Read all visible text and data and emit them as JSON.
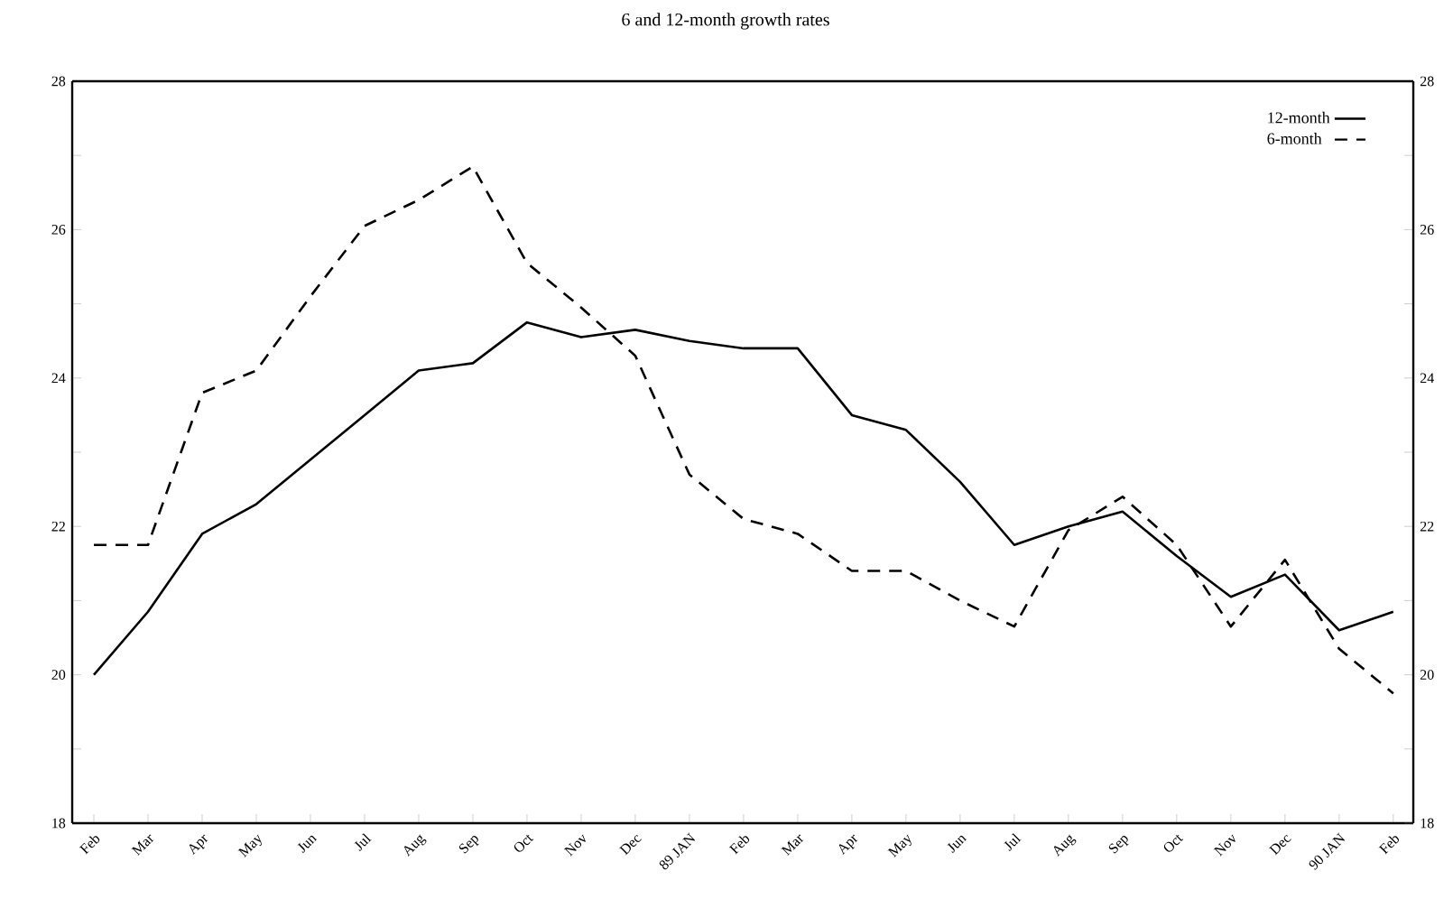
{
  "chart_data": {
    "type": "line",
    "title": "6 and 12-month growth rates",
    "categories": [
      "Feb",
      "Mar",
      "Apr",
      "May",
      "Jun",
      "Jul",
      "Aug",
      "Sep",
      "Oct",
      "Nov",
      "Dec",
      "89 JAN",
      "Feb",
      "Mar",
      "Apr",
      "May",
      "Jun",
      "Jul",
      "Aug",
      "Sep",
      "Oct",
      "Nov",
      "Dec",
      "90 JAN",
      "Feb"
    ],
    "series": [
      {
        "name": "12-month",
        "color": "#000000",
        "line_style": "solid",
        "values": [
          20.0,
          20.85,
          21.9,
          22.3,
          22.9,
          23.5,
          24.1,
          24.2,
          24.75,
          24.55,
          24.65,
          24.5,
          24.4,
          24.4,
          23.5,
          23.3,
          22.6,
          21.75,
          22.0,
          22.2,
          21.6,
          21.05,
          21.35,
          20.6,
          20.85
        ]
      },
      {
        "name": "6-month",
        "color": "#000000",
        "line_style": "dashed",
        "values": [
          21.75,
          21.75,
          23.8,
          24.1,
          25.1,
          26.05,
          26.4,
          26.85,
          25.55,
          24.95,
          24.3,
          22.7,
          22.1,
          21.9,
          21.4,
          21.4,
          21.0,
          20.65,
          21.95,
          22.4,
          21.75,
          20.65,
          21.55,
          20.35,
          19.75
        ]
      }
    ],
    "ylim": [
      18,
      28
    ],
    "yticks": [
      18,
      {
        "value": 19,
        "label": null
      },
      20,
      {
        "value": 21,
        "label": null
      },
      22,
      {
        "value": 23,
        "label": null
      },
      24,
      {
        "value": 25,
        "label": null
      },
      26,
      {
        "value": 27,
        "label": null
      },
      28
    ],
    "y2lim": [
      18,
      28
    ],
    "y2ticks": [
      18,
      {
        "value": 19,
        "label": null
      },
      20,
      {
        "value": 21,
        "label": null
      },
      22,
      {
        "value": 23,
        "label": null
      },
      24,
      {
        "value": 25,
        "label": null
      },
      26,
      {
        "value": 27,
        "label": null
      },
      28
    ],
    "grid": false,
    "legend": "top right",
    "marker": "none"
  }
}
